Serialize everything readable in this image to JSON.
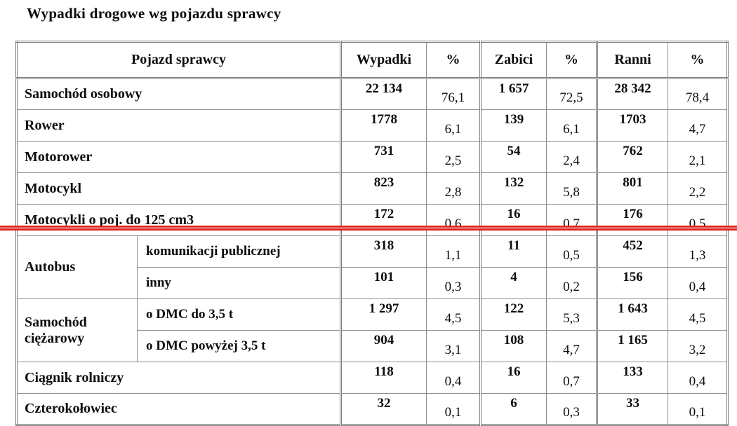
{
  "title": "Wypadki drogowe wg pojazdu sprawcy",
  "annotation": {
    "red_line_color": "#df2020"
  },
  "colors": {
    "border_gray": "#7d7d7d",
    "text": "#0d0d0d"
  },
  "table": {
    "header": {
      "vehicle": "Pojazd sprawcy",
      "accidents": "Wypadki",
      "pct1": "%",
      "killed": "Zabici",
      "pct2": "%",
      "injured": "Ranni",
      "pct3": "%"
    },
    "rows": [
      {
        "kind": "single",
        "label": "Samochód osobowy",
        "values": [
          "22 134",
          "76,1",
          "1 657",
          "72,5",
          "28 342",
          "78,4"
        ]
      },
      {
        "kind": "single",
        "label": "Rower",
        "values": [
          "1778",
          "6,1",
          "139",
          "6,1",
          "1703",
          "4,7"
        ]
      },
      {
        "kind": "single",
        "label": "Motorower",
        "values": [
          "731",
          "2,5",
          "54",
          "2,4",
          "762",
          "2,1"
        ]
      },
      {
        "kind": "single",
        "label": "Motocykl",
        "values": [
          "823",
          "2,8",
          "132",
          "5,8",
          "801",
          "2,2"
        ]
      },
      {
        "kind": "single",
        "label": "Motocykli o poj. do 125 cm3",
        "values": [
          "172",
          "0,6",
          "16",
          "0,7",
          "176",
          "0,5"
        ],
        "red_underline": true
      },
      {
        "kind": "group-first",
        "group": "Autobus",
        "label": "komunikacji publicznej",
        "values": [
          "318",
          "1,1",
          "11",
          "0,5",
          "452",
          "1,3"
        ]
      },
      {
        "kind": "group-second",
        "label": "inny",
        "values": [
          "101",
          "0,3",
          "4",
          "0,2",
          "156",
          "0,4"
        ]
      },
      {
        "kind": "group-first",
        "group": "Samochód ciężarowy",
        "label": "o DMC do 3,5 t",
        "values": [
          "1 297",
          "4,5",
          "122",
          "5,3",
          "1 643",
          "4,5"
        ]
      },
      {
        "kind": "group-second",
        "label": "o DMC powyżej 3,5 t",
        "values": [
          "904",
          "3,1",
          "108",
          "4,7",
          "1 165",
          "3,2"
        ]
      },
      {
        "kind": "single",
        "label": "Ciągnik rolniczy",
        "values": [
          "118",
          "0,4",
          "16",
          "0,7",
          "133",
          "0,4"
        ]
      },
      {
        "kind": "single",
        "label": "Czterokołowiec",
        "values": [
          "32",
          "0,1",
          "6",
          "0,3",
          "33",
          "0,1"
        ]
      }
    ]
  }
}
